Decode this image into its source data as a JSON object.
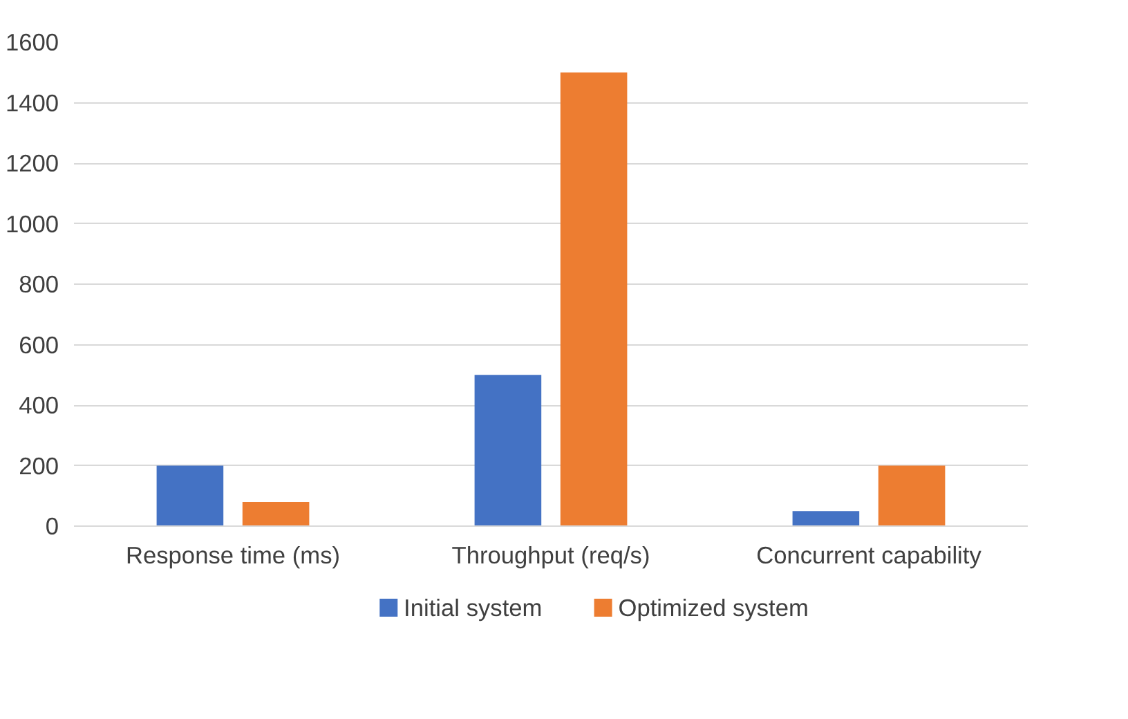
{
  "chart_data": {
    "type": "bar",
    "categories": [
      "Response time (ms)",
      "Throughput (req/s)",
      "Concurrent capability"
    ],
    "series": [
      {
        "name": "Initial system",
        "color": "#4472c4",
        "values": [
          200,
          500,
          50
        ]
      },
      {
        "name": "Optimized system",
        "color": "#ed7d31",
        "values": [
          80,
          1500,
          200
        ]
      }
    ],
    "ylim": [
      0,
      1600
    ],
    "yticks": [
      0,
      200,
      400,
      600,
      800,
      1000,
      1200,
      1400,
      1600
    ],
    "grid": "y",
    "legend": "bottom"
  }
}
